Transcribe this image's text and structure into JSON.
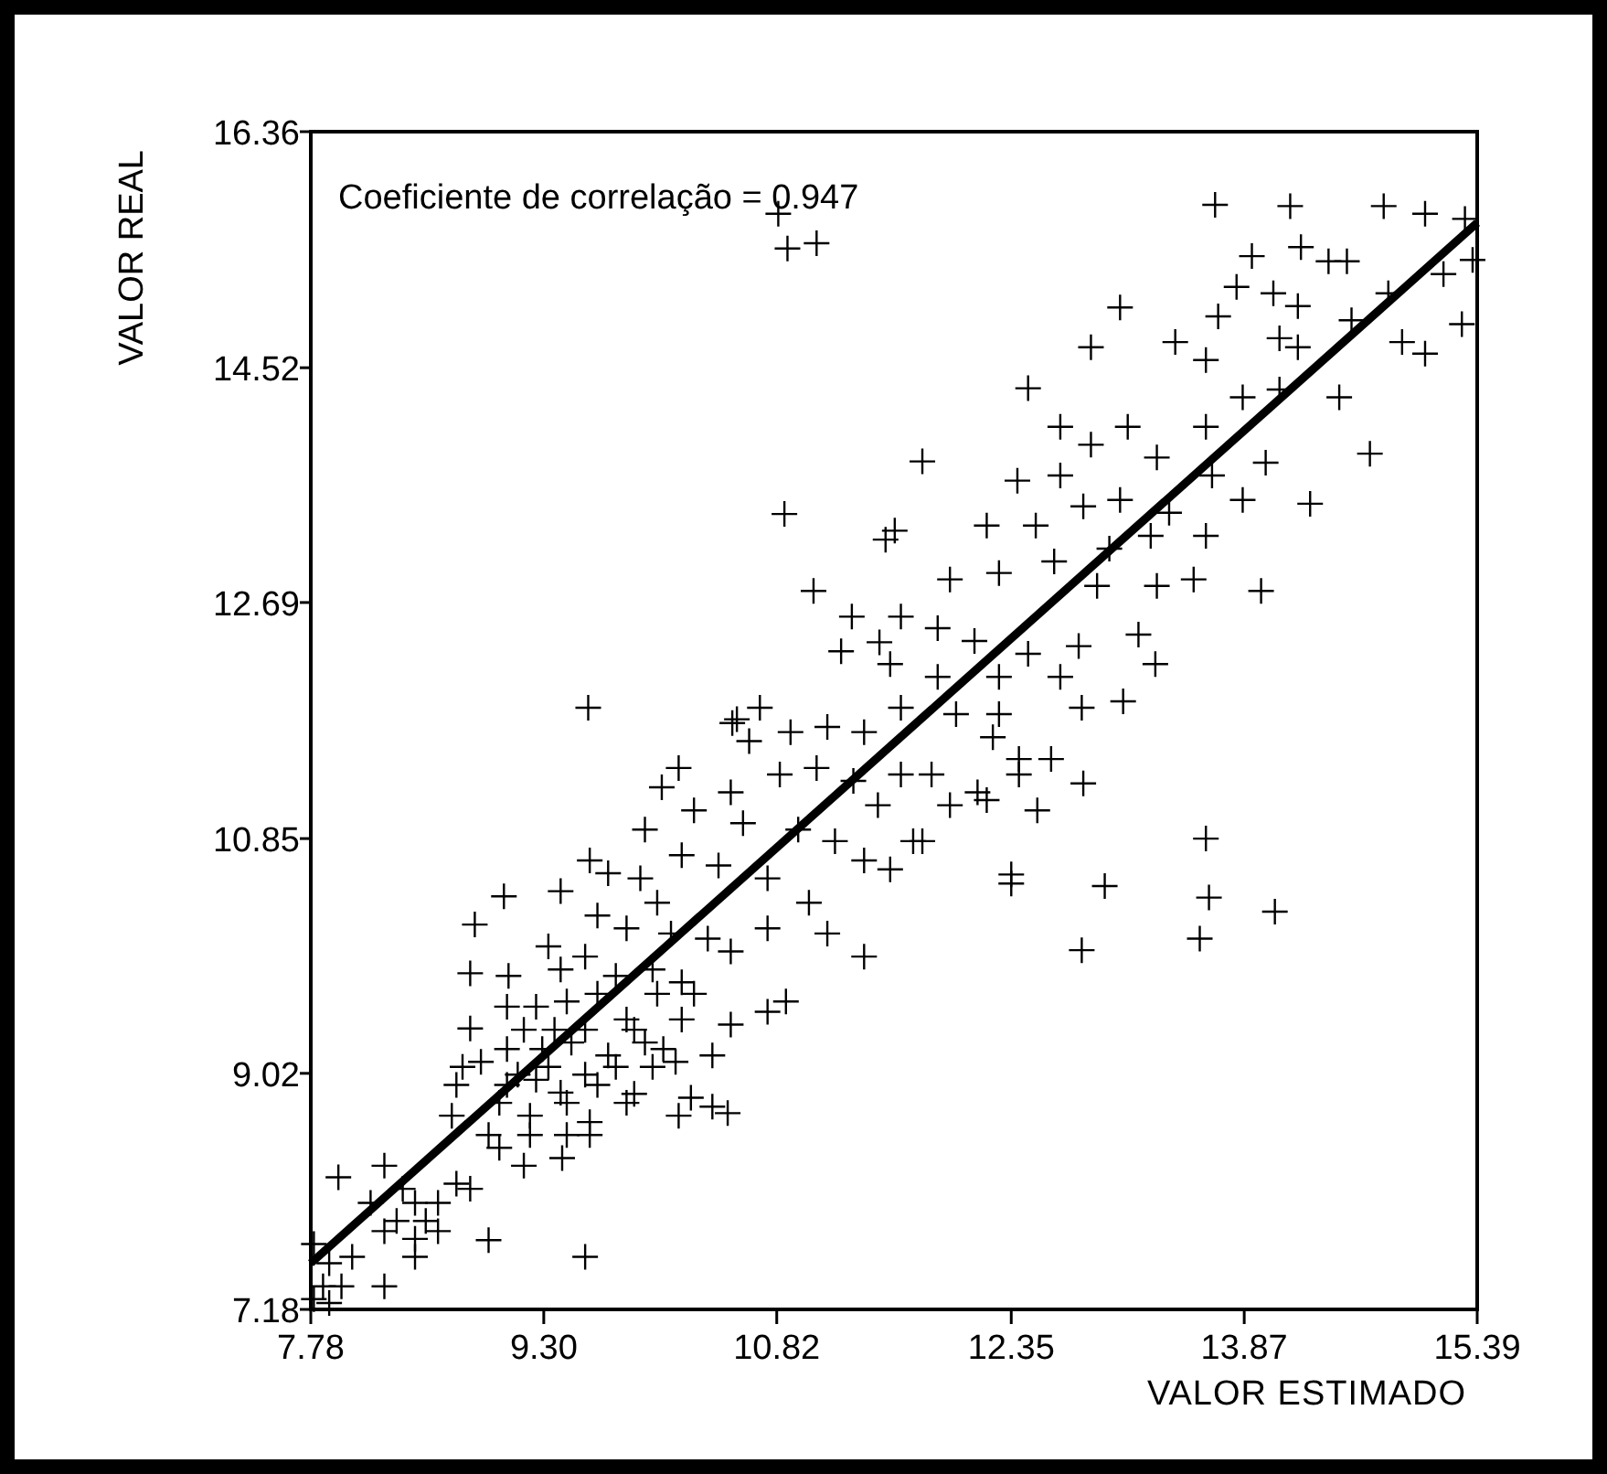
{
  "chart_data": {
    "type": "scatter",
    "xlabel": "VALOR ESTIMADO",
    "ylabel": "VALOR REAL",
    "annotations": [
      "Coeficiente de correlação = 0.947"
    ],
    "xlim": [
      7.78,
      15.39
    ],
    "ylim": [
      7.18,
      16.36
    ],
    "xticks": [
      7.78,
      {
        "value": 9.3,
        "label": "9.30"
      },
      10.82,
      12.35,
      13.87,
      15.39
    ],
    "yticks": [
      7.18,
      9.02,
      10.85,
      12.69,
      14.52,
      16.36
    ],
    "grid": false,
    "series": [
      {
        "color": "#000000",
        "marker": "cross",
        "x": [
          10.83,
          10.89,
          11.08,
          10.87,
          11.53,
          11.06,
          11.31,
          11.24,
          11.49,
          9.59,
          10.56,
          10.71,
          13.68,
          14.17,
          13.92,
          14.24,
          13.82,
          14.06,
          13.06,
          12.87,
          12.46,
          11.77,
          14.69,
          14.3,
          13.98,
          13.29,
          13.08,
          12.81,
          14.54,
          14.78,
          15.05,
          15.31,
          15.36,
          15.29,
          15.05,
          14.9,
          14.42,
          14.22,
          14.22,
          13.7,
          13.42,
          13.62,
          13.86,
          14.1,
          14.49,
          13.11,
          12.67,
          12.87,
          13.3,
          13.62,
          13.66,
          14.01,
          12.39,
          12.67,
          13.06,
          13.38,
          13.86,
          12.19,
          12.51,
          12.82,
          12.99,
          13.26,
          13.62,
          11.59,
          11.95,
          12.27,
          12.63,
          12.91,
          13.3,
          13.54,
          11.63,
          11.87,
          12.11,
          12.46,
          12.79,
          13.18,
          11.56,
          11.87,
          12.27,
          12.67,
          11.63,
          11.99,
          12.27,
          10.53,
          10.64,
          10.91,
          11.15,
          11.39,
          10.18,
          10.07,
          10.52,
          10.84,
          11.08,
          11.32,
          11.48,
          9.96,
          10.28,
          10.6,
          10.96,
          11.2,
          11.39,
          10.2,
          10.44,
          10.76,
          11.03,
          9.6,
          9.72,
          9.93,
          10.04,
          9.04,
          9.41,
          8.85,
          9.65,
          9.84,
          10.13,
          10.37,
          10.52,
          10.76,
          11.15,
          11.39,
          8.82,
          9.07,
          9.33,
          9.41,
          9.57,
          9.77,
          10.01,
          10.2,
          10.28,
          9.06,
          9.25,
          9.45,
          9.65,
          9.84,
          10.04,
          10.2,
          10.52,
          10.76,
          10.88,
          8.82,
          9.17,
          9.37,
          9.57,
          9.89,
          9.06,
          9.29,
          9.48,
          9.72,
          9.96,
          10.08,
          10.4,
          8.77,
          8.89,
          9.13,
          9.33,
          9.57,
          9.77,
          10.01,
          10.16,
          8.73,
          9.06,
          9.25,
          9.41,
          9.65,
          9.89,
          10.26,
          8.7,
          9.01,
          9.21,
          9.45,
          9.6,
          9.84,
          10.18,
          10.4,
          10.5,
          8.94,
          9.01,
          9.21,
          9.45,
          9.6,
          9.17,
          9.42,
          8.26,
          7.96,
          8.38,
          8.46,
          8.73,
          8.82,
          8.53,
          8.26,
          8.46,
          8.34,
          8.61,
          8.94,
          9.57,
          8.05,
          7.9,
          7.8,
          8.46,
          7.86,
          7.98,
          8.26,
          7.8,
          7.9,
          8.61,
          8.17,
          12.23,
          12.4,
          12.61,
          12.4,
          12.82,
          12.19,
          12.13,
          11.95,
          12.52,
          13.62,
          12.35,
          12.35,
          12.96,
          13.64,
          14.07,
          13.58,
          12.81,
          11.77,
          11.56,
          11.71,
          11.83,
          11.63,
          14.81,
          14.57,
          15.17,
          14.1
        ],
        "values": [
          15.72,
          15.45,
          15.49,
          13.38,
          13.18,
          12.78,
          12.58,
          12.31,
          12.38,
          11.87,
          11.78,
          11.87,
          15.79,
          15.78,
          15.39,
          15.46,
          15.15,
          15.1,
          14.99,
          14.68,
          14.36,
          13.79,
          13.85,
          13.46,
          12.78,
          12.21,
          11.92,
          11.87,
          15.35,
          15.78,
          15.72,
          15.68,
          15.36,
          14.86,
          14.63,
          14.72,
          15.35,
          15.0,
          14.68,
          14.92,
          14.72,
          14.58,
          14.29,
          14.35,
          14.29,
          14.06,
          14.06,
          13.92,
          13.82,
          14.06,
          13.68,
          13.78,
          13.64,
          13.68,
          13.49,
          13.39,
          13.49,
          13.29,
          13.29,
          13.44,
          13.11,
          13.21,
          13.21,
          13.25,
          12.87,
          12.92,
          13.01,
          12.82,
          12.82,
          12.87,
          12.58,
          12.49,
          12.39,
          12.29,
          12.35,
          12.44,
          12.21,
          12.11,
          12.11,
          12.11,
          11.87,
          11.82,
          11.82,
          11.75,
          11.61,
          11.68,
          11.72,
          11.68,
          11.4,
          11.25,
          11.21,
          11.35,
          11.4,
          11.3,
          11.11,
          10.92,
          11.07,
          10.97,
          10.92,
          10.83,
          10.68,
          10.72,
          10.64,
          10.54,
          10.35,
          10.68,
          10.58,
          10.54,
          10.35,
          10.4,
          10.44,
          10.18,
          10.25,
          10.15,
          10.11,
          10.07,
          9.97,
          10.15,
          10.11,
          9.93,
          9.8,
          9.78,
          10.01,
          9.83,
          9.93,
          9.78,
          9.83,
          9.73,
          9.64,
          9.54,
          9.54,
          9.58,
          9.64,
          9.44,
          9.64,
          9.44,
          9.4,
          9.5,
          9.58,
          9.37,
          9.36,
          9.36,
          9.36,
          9.36,
          9.21,
          9.21,
          9.26,
          9.16,
          9.26,
          9.21,
          9.16,
          9.07,
          9.11,
          9.01,
          9.07,
          9.01,
          9.07,
          9.07,
          9.11,
          8.93,
          8.93,
          8.97,
          8.87,
          8.93,
          8.86,
          8.83,
          8.69,
          8.79,
          8.69,
          8.79,
          8.64,
          8.79,
          8.69,
          8.76,
          8.71,
          8.54,
          8.44,
          8.54,
          8.54,
          8.54,
          8.3,
          8.36,
          8.3,
          8.21,
          8.12,
          8.01,
          8.16,
          8.12,
          7.87,
          7.79,
          7.73,
          7.87,
          7.79,
          7.72,
          7.59,
          7.59,
          7.54,
          7.69,
          7.59,
          7.36,
          7.36,
          7.36,
          7.26,
          7.23,
          8.01,
          8.01,
          11.64,
          11.47,
          11.47,
          11.35,
          11.28,
          11.15,
          11.21,
          11.11,
          11.07,
          10.85,
          10.57,
          10.5,
          10.48,
          10.39,
          10.28,
          10.07,
          9.98,
          10.83,
          10.61,
          10.83,
          11.35,
          11.35,
          15.1,
          14.89,
          15.25,
          14.75
        ]
      },
      {
        "type": "line",
        "color": "#000000",
        "line_style": "solid",
        "x": [
          7.78,
          15.39
        ],
        "values": [
          7.54,
          15.65
        ]
      }
    ]
  }
}
